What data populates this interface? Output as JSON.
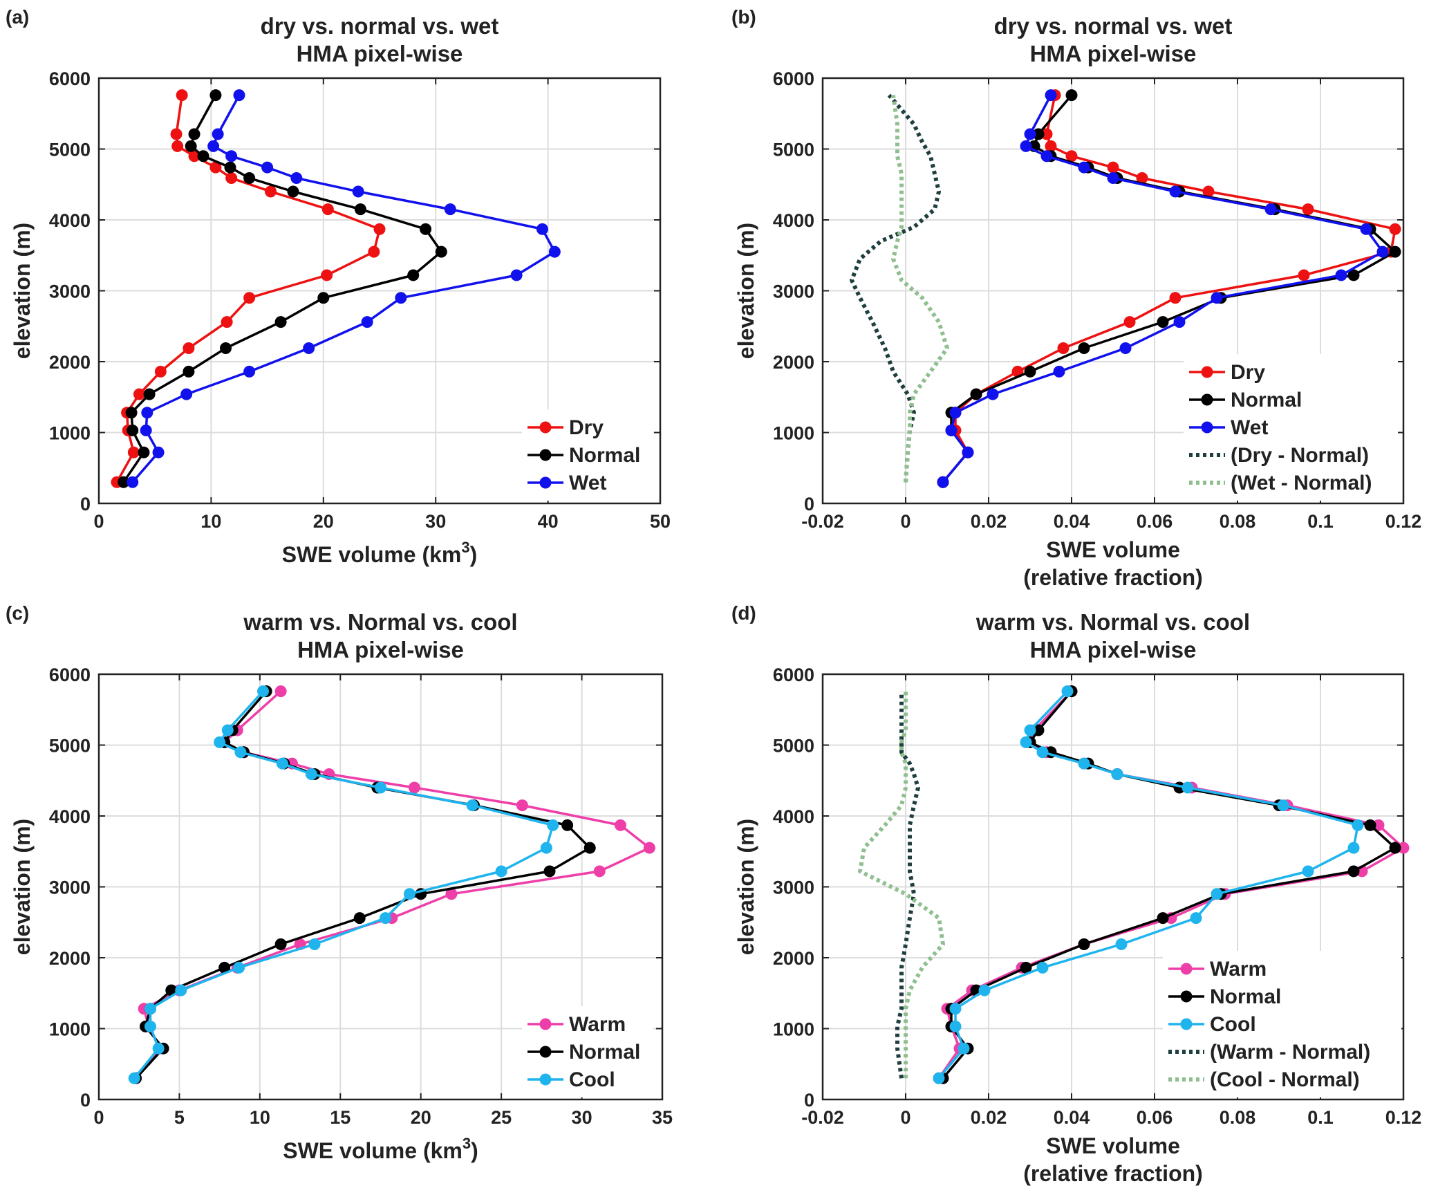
{
  "chart_data": [
    {
      "type": "line",
      "panel_label": "(a)",
      "title": [
        "dry vs. normal vs. wet",
        "HMA pixel-wise"
      ],
      "xlabel": "SWE volume (km",
      "xlabel_sup": "3",
      "xlabel_suffix": ")",
      "ylabel": "elevation (m)",
      "xlim": [
        0,
        50
      ],
      "ylim": [
        0,
        6000
      ],
      "xticks": [
        0,
        10,
        20,
        30,
        40,
        50
      ],
      "xtick_labels": [
        "0",
        "10",
        "20",
        "30",
        "40",
        "50"
      ],
      "yticks": [
        0,
        1000,
        2000,
        3000,
        4000,
        5000,
        6000
      ],
      "ytick_labels": [
        "0",
        "1000",
        "2000",
        "3000",
        "4000",
        "5000",
        "6000"
      ],
      "grid": true,
      "legend_position": "bottom-right",
      "series": [
        {
          "name": "Dry",
          "color": "#ee1111",
          "style": "solid-marker",
          "x": [
            1.6,
            3.1,
            2.6,
            2.5,
            3.6,
            5.5,
            8.0,
            11.4,
            13.4,
            20.3,
            24.5,
            25.0,
            20.4,
            15.3,
            11.8,
            10.4,
            8.5,
            7.0,
            6.9,
            7.4
          ],
          "y": [
            300,
            720,
            1030,
            1280,
            1540,
            1860,
            2190,
            2560,
            2900,
            3220,
            3550,
            3870,
            4150,
            4400,
            4590,
            4740,
            4900,
            5040,
            5210,
            5760
          ]
        },
        {
          "name": "Normal",
          "color": "#000000",
          "style": "solid-marker",
          "x": [
            2.2,
            4.0,
            3.0,
            2.9,
            4.5,
            8.0,
            11.3,
            16.2,
            20.0,
            28.0,
            30.5,
            29.1,
            23.3,
            17.3,
            13.4,
            11.7,
            9.3,
            8.2,
            8.5,
            10.4
          ],
          "y": [
            300,
            720,
            1030,
            1280,
            1540,
            1860,
            2190,
            2560,
            2900,
            3220,
            3550,
            3870,
            4150,
            4400,
            4590,
            4740,
            4900,
            5040,
            5210,
            5760
          ]
        },
        {
          "name": "Wet",
          "color": "#1111ee",
          "style": "solid-marker",
          "x": [
            3.0,
            5.3,
            4.2,
            4.3,
            7.8,
            13.4,
            18.7,
            23.9,
            26.9,
            37.2,
            40.6,
            39.5,
            31.3,
            23.1,
            17.6,
            15.0,
            11.8,
            10.2,
            10.6,
            12.5
          ],
          "y": [
            300,
            720,
            1030,
            1280,
            1540,
            1860,
            2190,
            2560,
            2900,
            3220,
            3550,
            3870,
            4150,
            4400,
            4590,
            4740,
            4900,
            5040,
            5210,
            5760
          ]
        }
      ]
    },
    {
      "type": "line",
      "panel_label": "(b)",
      "title": [
        "dry vs. normal vs. wet",
        "HMA pixel-wise"
      ],
      "xlabel": "SWE volume",
      "xlabel_line2": "(relative fraction)",
      "ylabel": "elevation (m)",
      "xlim": [
        -0.02,
        0.12
      ],
      "ylim": [
        0,
        6000
      ],
      "xticks": [
        -0.02,
        0,
        0.02,
        0.04,
        0.06,
        0.08,
        0.1,
        0.12
      ],
      "xtick_labels": [
        "-0.02",
        "0",
        "0.02",
        "0.04",
        "0.06",
        "0.08",
        "0.1",
        "0.12"
      ],
      "yticks": [
        0,
        1000,
        2000,
        3000,
        4000,
        5000,
        6000
      ],
      "ytick_labels": [
        "0",
        "1000",
        "2000",
        "3000",
        "4000",
        "5000",
        "6000"
      ],
      "grid": true,
      "legend_position": "bottom-right",
      "series": [
        {
          "name": "Dry",
          "color": "#ee1111",
          "style": "solid-marker",
          "x": [
            0.009,
            0.015,
            0.012,
            0.012,
            0.017,
            0.027,
            0.038,
            0.054,
            0.065,
            0.096,
            0.117,
            0.118,
            0.097,
            0.073,
            0.057,
            0.05,
            0.04,
            0.035,
            0.034,
            0.036
          ],
          "y": [
            300,
            720,
            1030,
            1280,
            1540,
            1860,
            2190,
            2560,
            2900,
            3220,
            3550,
            3870,
            4150,
            4400,
            4590,
            4740,
            4900,
            5040,
            5210,
            5760
          ]
        },
        {
          "name": "Normal",
          "color": "#000000",
          "style": "solid-marker",
          "x": [
            0.009,
            0.015,
            0.011,
            0.011,
            0.017,
            0.03,
            0.043,
            0.062,
            0.076,
            0.108,
            0.118,
            0.112,
            0.089,
            0.066,
            0.051,
            0.044,
            0.035,
            0.031,
            0.032,
            0.04
          ],
          "y": [
            300,
            720,
            1030,
            1280,
            1540,
            1860,
            2190,
            2560,
            2900,
            3220,
            3550,
            3870,
            4150,
            4400,
            4590,
            4740,
            4900,
            5040,
            5210,
            5760
          ]
        },
        {
          "name": "Wet",
          "color": "#1111ee",
          "style": "solid-marker",
          "x": [
            0.009,
            0.015,
            0.011,
            0.012,
            0.021,
            0.037,
            0.053,
            0.066,
            0.075,
            0.105,
            0.115,
            0.111,
            0.088,
            0.065,
            0.05,
            0.043,
            0.034,
            0.029,
            0.03,
            0.035
          ],
          "y": [
            300,
            720,
            1030,
            1280,
            1540,
            1860,
            2190,
            2560,
            2900,
            3220,
            3550,
            3870,
            4150,
            4400,
            4590,
            4740,
            4900,
            5040,
            5210,
            5760
          ]
        },
        {
          "name": "(Dry - Normal)",
          "color": "#1f3f3f",
          "style": "dotted",
          "x": [
            0.0,
            0.0005,
            0.001,
            0.002,
            0.0005,
            -0.003,
            -0.005,
            -0.008,
            -0.011,
            -0.013,
            -0.011,
            -0.006,
            0.002,
            0.007,
            0.008,
            0.007,
            0.006,
            0.004,
            0.002,
            -0.004
          ],
          "y": [
            300,
            720,
            1030,
            1280,
            1540,
            1860,
            2190,
            2560,
            2900,
            3150,
            3450,
            3700,
            3900,
            4150,
            4400,
            4650,
            4900,
            5100,
            5350,
            5760
          ]
        },
        {
          "name": "(Wet - Normal)",
          "color": "#8fbf8f",
          "style": "dotted",
          "x": [
            0.0,
            0.0005,
            0.001,
            0.001,
            0.002,
            0.006,
            0.01,
            0.008,
            0.004,
            -0.001,
            -0.003,
            -0.002,
            -0.001,
            -0.001,
            -0.001,
            -0.001,
            -0.002,
            -0.002,
            -0.002,
            -0.003
          ],
          "y": [
            300,
            720,
            1030,
            1280,
            1540,
            1860,
            2190,
            2560,
            2900,
            3150,
            3450,
            3700,
            3900,
            4150,
            4400,
            4650,
            4900,
            5100,
            5350,
            5760
          ]
        }
      ]
    },
    {
      "type": "line",
      "panel_label": "(c)",
      "title": [
        "warm vs. Normal vs. cool",
        "HMA pixel-wise"
      ],
      "xlabel": "SWE volume (km",
      "xlabel_sup": "3",
      "xlabel_suffix": ")",
      "ylabel": "elevation (m)",
      "xlim": [
        0,
        35
      ],
      "ylim": [
        0,
        6000
      ],
      "xticks": [
        0,
        5,
        10,
        15,
        20,
        25,
        30,
        35
      ],
      "xtick_labels": [
        "0",
        "5",
        "10",
        "15",
        "20",
        "25",
        "30",
        "35"
      ],
      "yticks": [
        0,
        1000,
        2000,
        3000,
        4000,
        5000,
        6000
      ],
      "ytick_labels": [
        "0",
        "1000",
        "2000",
        "3000",
        "4000",
        "5000",
        "6000"
      ],
      "grid": true,
      "legend_position": "bottom-right",
      "series": [
        {
          "name": "Warm",
          "color": "#ee3fa9",
          "style": "solid-marker",
          "x": [
            2.3,
            3.8,
            3.1,
            2.8,
            5.0,
            8.6,
            12.5,
            18.2,
            21.9,
            31.1,
            34.2,
            32.4,
            26.3,
            19.6,
            14.3,
            12.0,
            9.0,
            7.8,
            8.6,
            11.3
          ],
          "y": [
            300,
            720,
            1030,
            1280,
            1540,
            1860,
            2190,
            2560,
            2900,
            3220,
            3550,
            3870,
            4150,
            4400,
            4590,
            4740,
            4900,
            5040,
            5210,
            5760
          ]
        },
        {
          "name": "Normal",
          "color": "#000000",
          "style": "solid-marker",
          "x": [
            2.3,
            4.0,
            2.9,
            3.2,
            4.5,
            7.8,
            11.3,
            16.2,
            20.0,
            28.0,
            30.5,
            29.1,
            23.3,
            17.3,
            13.4,
            11.5,
            9.0,
            7.8,
            8.3,
            10.4
          ],
          "y": [
            300,
            720,
            1030,
            1280,
            1540,
            1860,
            2190,
            2560,
            2900,
            3220,
            3550,
            3870,
            4150,
            4400,
            4590,
            4740,
            4900,
            5040,
            5210,
            5760
          ]
        },
        {
          "name": "Cool",
          "color": "#1fb4ee",
          "style": "solid-marker",
          "x": [
            2.2,
            3.7,
            3.2,
            3.2,
            5.1,
            8.7,
            13.4,
            17.8,
            19.3,
            25.0,
            27.8,
            28.2,
            23.2,
            17.5,
            13.2,
            11.4,
            8.8,
            7.5,
            8.0,
            10.2
          ],
          "y": [
            300,
            720,
            1030,
            1280,
            1540,
            1860,
            2190,
            2560,
            2900,
            3220,
            3550,
            3870,
            4150,
            4400,
            4590,
            4740,
            4900,
            5040,
            5210,
            5760
          ]
        }
      ]
    },
    {
      "type": "line",
      "panel_label": "(d)",
      "title": [
        "warm vs. Normal vs. cool",
        "HMA pixel-wise"
      ],
      "xlabel": "SWE volume",
      "xlabel_line2": "(relative fraction)",
      "ylabel": "elevation (m)",
      "xlim": [
        -0.02,
        0.12
      ],
      "ylim": [
        0,
        6000
      ],
      "xticks": [
        -0.02,
        0,
        0.02,
        0.04,
        0.06,
        0.08,
        0.1,
        0.12
      ],
      "xtick_labels": [
        "-0.02",
        "0",
        "0.02",
        "0.04",
        "0.06",
        "0.08",
        "0.1",
        "0.12"
      ],
      "yticks": [
        0,
        1000,
        2000,
        3000,
        4000,
        5000,
        6000
      ],
      "ytick_labels": [
        "0",
        "1000",
        "2000",
        "3000",
        "4000",
        "5000",
        "6000"
      ],
      "grid": true,
      "legend_position": "bottom-right",
      "series": [
        {
          "name": "Warm",
          "color": "#ee3fa9",
          "style": "solid-marker",
          "x": [
            0.008,
            0.013,
            0.011,
            0.01,
            0.016,
            0.028,
            0.043,
            0.064,
            0.077,
            0.11,
            0.12,
            0.114,
            0.092,
            0.069,
            0.051,
            0.043,
            0.034,
            0.03,
            0.031,
            0.04
          ],
          "y": [
            300,
            720,
            1030,
            1280,
            1540,
            1860,
            2190,
            2560,
            2900,
            3220,
            3550,
            3870,
            4150,
            4400,
            4590,
            4740,
            4900,
            5040,
            5210,
            5760
          ]
        },
        {
          "name": "Normal",
          "color": "#000000",
          "style": "solid-marker",
          "x": [
            0.009,
            0.015,
            0.011,
            0.011,
            0.017,
            0.029,
            0.043,
            0.062,
            0.076,
            0.108,
            0.118,
            0.112,
            0.09,
            0.066,
            0.051,
            0.044,
            0.035,
            0.03,
            0.032,
            0.04
          ],
          "y": [
            300,
            720,
            1030,
            1280,
            1540,
            1860,
            2190,
            2560,
            2900,
            3220,
            3550,
            3870,
            4150,
            4400,
            4590,
            4740,
            4900,
            5040,
            5210,
            5760
          ]
        },
        {
          "name": "Cool",
          "color": "#1fb4ee",
          "style": "solid-marker",
          "x": [
            0.008,
            0.014,
            0.012,
            0.012,
            0.019,
            0.033,
            0.052,
            0.07,
            0.075,
            0.097,
            0.108,
            0.109,
            0.091,
            0.068,
            0.051,
            0.043,
            0.033,
            0.029,
            0.03,
            0.039
          ],
          "y": [
            300,
            720,
            1030,
            1280,
            1540,
            1860,
            2190,
            2560,
            2900,
            3220,
            3550,
            3870,
            4150,
            4400,
            4590,
            4740,
            4900,
            5040,
            5210,
            5760
          ]
        },
        {
          "name": "(Warm - Normal)",
          "color": "#1f3f3f",
          "style": "dotted",
          "x": [
            -0.001,
            -0.002,
            -0.002,
            -0.001,
            -0.001,
            -0.001,
            0.0,
            0.001,
            0.002,
            0.001,
            0.001,
            0.001,
            0.002,
            0.003,
            0.002,
            0.001,
            -0.001,
            -0.001,
            -0.001,
            -0.001
          ],
          "y": [
            300,
            720,
            1030,
            1280,
            1540,
            1860,
            2190,
            2560,
            2900,
            3220,
            3550,
            3870,
            4150,
            4400,
            4590,
            4740,
            4900,
            5040,
            5210,
            5760
          ]
        },
        {
          "name": "(Cool - Normal)",
          "color": "#8fbf8f",
          "style": "dotted",
          "x": [
            0.0,
            0.0,
            0.0,
            0.0,
            0.001,
            0.004,
            0.009,
            0.008,
            0.0,
            -0.011,
            -0.01,
            -0.005,
            -0.001,
            0.0,
            0.0,
            0.0,
            -0.001,
            -0.001,
            0.0,
            0.0
          ],
          "y": [
            300,
            720,
            1030,
            1280,
            1540,
            1860,
            2190,
            2560,
            2900,
            3220,
            3550,
            3870,
            4150,
            4400,
            4590,
            4740,
            4900,
            5040,
            5210,
            5760
          ]
        }
      ]
    }
  ]
}
